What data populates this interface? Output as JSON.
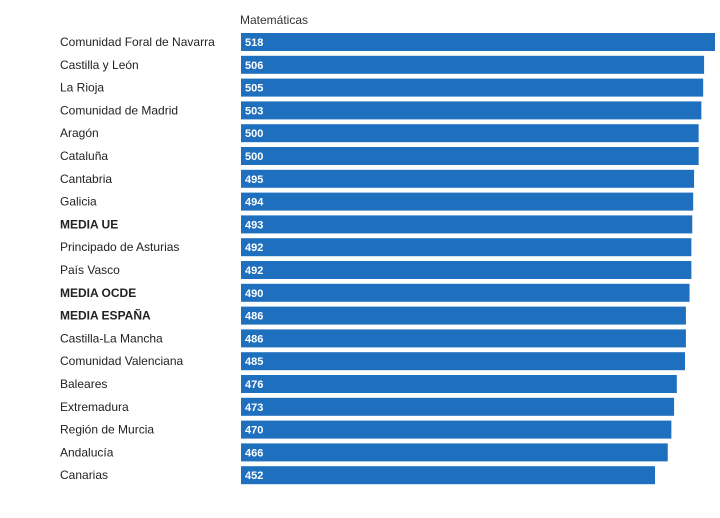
{
  "chart_data": {
    "type": "bar",
    "orientation": "horizontal",
    "title": "Matemáticas",
    "categories": [
      "Comunidad Foral de Navarra",
      "Castilla y León",
      "La Rioja",
      "Comunidad de Madrid",
      "Aragón",
      "Cataluña",
      "Cantabria",
      "Galicia",
      "MEDIA UE",
      "Principado de Asturias",
      "País Vasco",
      "MEDIA OCDE",
      "MEDIA ESPAÑA",
      "Castilla-La Mancha",
      "Comunidad Valenciana",
      "Baleares",
      "Extremadura",
      "Región de Murcia",
      "Andalucía",
      "Canarias"
    ],
    "values": [
      518,
      506,
      505,
      503,
      500,
      500,
      495,
      494,
      493,
      492,
      492,
      490,
      486,
      486,
      485,
      476,
      473,
      470,
      466,
      452
    ],
    "value_labels": [
      "518",
      "506",
      "505",
      "503",
      "500",
      "500",
      "495",
      "494",
      "493",
      "492",
      "492",
      "490",
      "486",
      "486",
      "485",
      "476",
      "473",
      "470",
      "466",
      "452"
    ],
    "highlighted_categories": [
      "MEDIA UE",
      "MEDIA OCDE",
      "MEDIA ESPAÑA"
    ],
    "xlim": [
      0,
      518
    ],
    "grid": false,
    "legend": "none",
    "bar_color": "#1e6fbe",
    "label_color": "#ffffff",
    "category_color": "#222222"
  }
}
